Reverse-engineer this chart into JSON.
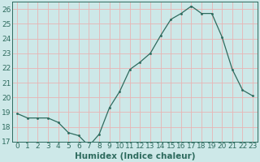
{
  "x": [
    0,
    1,
    2,
    3,
    4,
    5,
    6,
    7,
    8,
    9,
    10,
    11,
    12,
    13,
    14,
    15,
    16,
    17,
    18,
    19,
    20,
    21,
    22,
    23
  ],
  "y": [
    18.9,
    18.6,
    18.6,
    18.6,
    18.3,
    17.6,
    17.4,
    16.7,
    17.5,
    19.3,
    20.4,
    21.9,
    22.4,
    23.0,
    24.2,
    25.3,
    25.7,
    26.2,
    25.7,
    25.7,
    24.1,
    21.9,
    20.5,
    20.1
  ],
  "xlabel": "Humidex (Indice chaleur)",
  "ylim": [
    17,
    26.5
  ],
  "yticks": [
    17,
    18,
    19,
    20,
    21,
    22,
    23,
    24,
    25,
    26
  ],
  "xlim": [
    -0.5,
    23.5
  ],
  "line_color": "#2e6b5e",
  "bg_color": "#cde8e8",
  "grid_color": "#e8b4b4",
  "label_color": "#2e6b5e",
  "tick_fontsize": 6.5,
  "xlabel_fontsize": 7.5
}
